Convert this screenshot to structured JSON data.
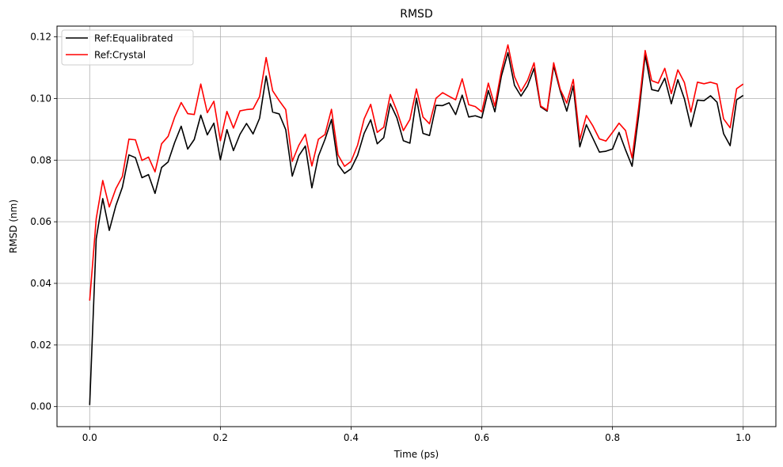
{
  "chart_data": {
    "type": "line",
    "title": "RMSD",
    "xlabel": "Time (ps)",
    "ylabel": "RMSD (nm)",
    "xlim": [
      -0.05,
      1.05
    ],
    "ylim": [
      -0.0065,
      0.1235
    ],
    "xticks": [
      0.0,
      0.2,
      0.4,
      0.6,
      0.8,
      1.0
    ],
    "xtick_labels": [
      "0.0",
      "0.2",
      "0.4",
      "0.6",
      "0.8",
      "1.0"
    ],
    "yticks": [
      0.0,
      0.02,
      0.04,
      0.06,
      0.08,
      0.1,
      0.12
    ],
    "ytick_labels": [
      "0.00",
      "0.02",
      "0.04",
      "0.06",
      "0.08",
      "0.10",
      "0.12"
    ],
    "grid": true,
    "legend": "top-left",
    "x_start": 0.0,
    "x_step": 0.01,
    "series": [
      {
        "name": "Ref:Equalibrated",
        "color": "#000000",
        "values": [
          0.0005,
          0.0545,
          0.0675,
          0.0572,
          0.0652,
          0.0712,
          0.0817,
          0.0808,
          0.0743,
          0.0753,
          0.0692,
          0.0776,
          0.0794,
          0.0857,
          0.091,
          0.0836,
          0.0867,
          0.0946,
          0.0882,
          0.092,
          0.0801,
          0.0899,
          0.0831,
          0.0884,
          0.0919,
          0.0885,
          0.0936,
          0.1073,
          0.0956,
          0.095,
          0.0899,
          0.0748,
          0.0814,
          0.0846,
          0.071,
          0.0813,
          0.0867,
          0.0932,
          0.0786,
          0.0757,
          0.0772,
          0.0816,
          0.0887,
          0.0931,
          0.0853,
          0.0873,
          0.0983,
          0.0938,
          0.0863,
          0.0855,
          0.1001,
          0.0887,
          0.088,
          0.0978,
          0.0977,
          0.0986,
          0.0948,
          0.1011,
          0.094,
          0.0944,
          0.0937,
          0.1026,
          0.0957,
          0.1073,
          0.1149,
          0.1043,
          0.1008,
          0.1041,
          0.1098,
          0.0973,
          0.0959,
          0.1106,
          0.1025,
          0.0959,
          0.1041,
          0.0843,
          0.0915,
          0.0871,
          0.0826,
          0.0829,
          0.0836,
          0.089,
          0.0833,
          0.078,
          0.0944,
          0.1141,
          0.1029,
          0.1024,
          0.1066,
          0.0983,
          0.1061,
          0.0999,
          0.0909,
          0.0995,
          0.0993,
          0.1009,
          0.0988,
          0.0886,
          0.0847,
          0.0996,
          0.101
        ]
      },
      {
        "name": "Ref:Crystal",
        "color": "#ff0000",
        "values": [
          0.0344,
          0.061,
          0.0734,
          0.0648,
          0.0707,
          0.0747,
          0.0868,
          0.0866,
          0.0799,
          0.081,
          0.0762,
          0.0853,
          0.0877,
          0.0939,
          0.0987,
          0.0951,
          0.0948,
          0.1047,
          0.0954,
          0.0991,
          0.0863,
          0.0958,
          0.0904,
          0.096,
          0.0964,
          0.0966,
          0.1006,
          0.1133,
          0.1025,
          0.0993,
          0.0964,
          0.0796,
          0.0848,
          0.0884,
          0.0781,
          0.0868,
          0.0883,
          0.0965,
          0.0817,
          0.078,
          0.0796,
          0.0849,
          0.0934,
          0.0981,
          0.089,
          0.0907,
          0.1013,
          0.096,
          0.0896,
          0.0932,
          0.1031,
          0.094,
          0.0918,
          0.1001,
          0.1019,
          0.1007,
          0.0996,
          0.1064,
          0.098,
          0.0974,
          0.0957,
          0.105,
          0.0975,
          0.109,
          0.1174,
          0.1071,
          0.1023,
          0.1059,
          0.1116,
          0.0976,
          0.0962,
          0.1116,
          0.103,
          0.0985,
          0.1062,
          0.0866,
          0.0945,
          0.0911,
          0.0869,
          0.0862,
          0.089,
          0.092,
          0.0896,
          0.0807,
          0.097,
          0.1156,
          0.1058,
          0.105,
          0.1098,
          0.1016,
          0.1093,
          0.1052,
          0.0956,
          0.1053,
          0.1048,
          0.1053,
          0.1047,
          0.0934,
          0.0905,
          0.1032,
          0.1047
        ]
      }
    ]
  }
}
